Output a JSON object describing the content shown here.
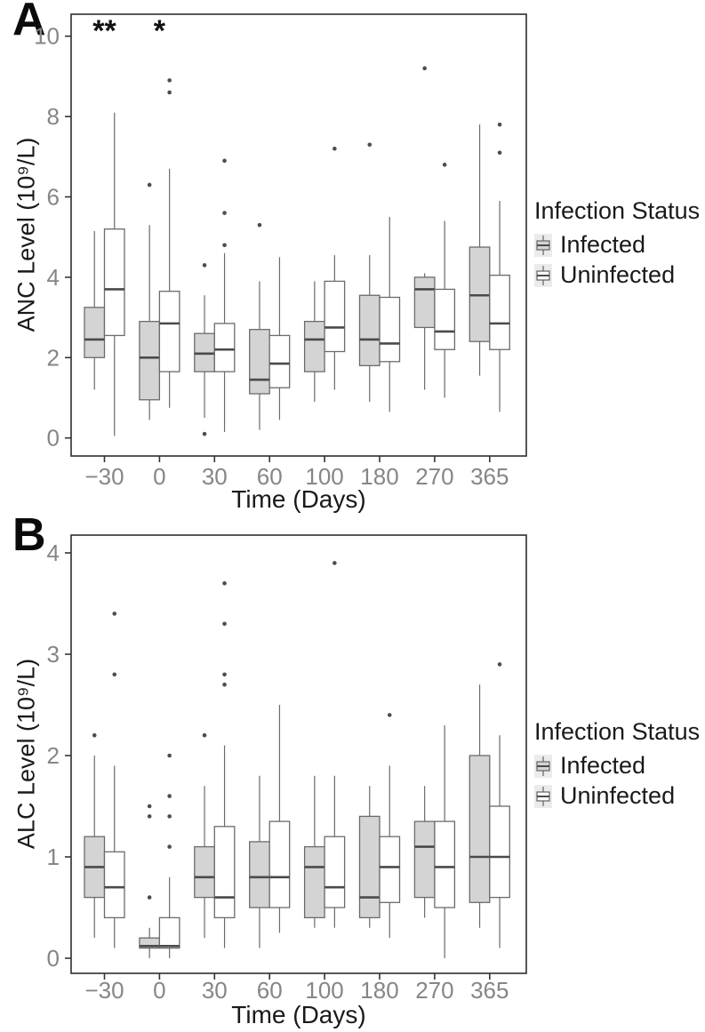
{
  "figure": {
    "background": "#ffffff",
    "colors": {
      "box_stroke": "#6b6b6b",
      "median": "#4a4a4a",
      "outlier": "#4d4d4d",
      "border": "#3a3a3a",
      "tick": "#333333",
      "tick_label": "#868686",
      "axis_title": "#1a1a1a",
      "infected_fill": "#d4d4d4",
      "uninfected_fill": "#ffffff",
      "legend_key_bg": "#ebebeb"
    }
  },
  "chart_data": [
    {
      "type": "box",
      "panel_label": "A",
      "title": "",
      "xlabel": "Time (Days)",
      "ylabel": "ANC Level (10⁹/L)",
      "ylim": [
        0,
        10.5
      ],
      "yticks": [
        0,
        2,
        4,
        6,
        8,
        10
      ],
      "grid": false,
      "legend": {
        "title": "Infection Status",
        "position": "right",
        "entries": [
          "Infected",
          "Uninfected"
        ]
      },
      "categories": [
        "−30",
        "0",
        "30",
        "60",
        "100",
        "180",
        "270",
        "365"
      ],
      "annotations": [
        {
          "text": "**",
          "category": "−30"
        },
        {
          "text": "*",
          "category": "0"
        }
      ],
      "series": [
        {
          "name": "Infected",
          "fill": "#d4d4d4",
          "boxes": [
            {
              "whislo": 1.2,
              "q1": 2.0,
              "med": 2.45,
              "q3": 3.25,
              "whishi": 5.15,
              "outliers": []
            },
            {
              "whislo": 0.45,
              "q1": 0.95,
              "med": 2.0,
              "q3": 2.9,
              "whishi": 5.3,
              "outliers": [
                6.3
              ]
            },
            {
              "whislo": 0.5,
              "q1": 1.65,
              "med": 2.1,
              "q3": 2.6,
              "whishi": 3.55,
              "outliers": [
                4.3,
                0.1
              ]
            },
            {
              "whislo": 0.2,
              "q1": 1.1,
              "med": 1.45,
              "q3": 2.7,
              "whishi": 3.9,
              "outliers": [
                5.3
              ]
            },
            {
              "whislo": 0.9,
              "q1": 1.65,
              "med": 2.45,
              "q3": 2.9,
              "whishi": 3.9,
              "outliers": []
            },
            {
              "whislo": 0.9,
              "q1": 1.8,
              "med": 2.45,
              "q3": 3.55,
              "whishi": 4.55,
              "outliers": [
                7.3
              ]
            },
            {
              "whislo": 1.2,
              "q1": 2.75,
              "med": 3.7,
              "q3": 4.0,
              "whishi": 4.1,
              "outliers": [
                9.2
              ]
            },
            {
              "whislo": 1.55,
              "q1": 2.4,
              "med": 3.55,
              "q3": 4.75,
              "whishi": 7.8,
              "outliers": []
            }
          ]
        },
        {
          "name": "Uninfected",
          "fill": "#ffffff",
          "boxes": [
            {
              "whislo": 0.05,
              "q1": 2.55,
              "med": 3.7,
              "q3": 5.2,
              "whishi": 8.1,
              "outliers": []
            },
            {
              "whislo": 0.75,
              "q1": 1.65,
              "med": 2.85,
              "q3": 3.65,
              "whishi": 6.7,
              "outliers": [
                8.6,
                8.9
              ]
            },
            {
              "whislo": 0.15,
              "q1": 1.65,
              "med": 2.2,
              "q3": 2.85,
              "whishi": 4.6,
              "outliers": [
                4.8,
                5.6,
                6.9
              ]
            },
            {
              "whislo": 0.45,
              "q1": 1.25,
              "med": 1.85,
              "q3": 2.55,
              "whishi": 4.5,
              "outliers": []
            },
            {
              "whislo": 1.2,
              "q1": 2.15,
              "med": 2.75,
              "q3": 3.9,
              "whishi": 4.55,
              "outliers": [
                7.2
              ]
            },
            {
              "whislo": 0.65,
              "q1": 1.9,
              "med": 2.35,
              "q3": 3.5,
              "whishi": 5.5,
              "outliers": []
            },
            {
              "whislo": 1.0,
              "q1": 2.2,
              "med": 2.65,
              "q3": 3.7,
              "whishi": 5.4,
              "outliers": [
                6.8
              ]
            },
            {
              "whislo": 0.65,
              "q1": 2.2,
              "med": 2.85,
              "q3": 4.05,
              "whishi": 5.9,
              "outliers": [
                7.1,
                7.8
              ]
            }
          ]
        }
      ]
    },
    {
      "type": "box",
      "panel_label": "B",
      "title": "",
      "xlabel": "Time (Days)",
      "ylabel": "ALC Level (10⁹/L)",
      "ylim": [
        0,
        4.2
      ],
      "yticks": [
        0,
        1,
        2,
        3,
        4
      ],
      "grid": false,
      "legend": {
        "title": "Infection Status",
        "position": "right",
        "entries": [
          "Infected",
          "Uninfected"
        ]
      },
      "categories": [
        "−30",
        "0",
        "30",
        "60",
        "100",
        "180",
        "270",
        "365"
      ],
      "annotations": [],
      "series": [
        {
          "name": "Infected",
          "fill": "#d4d4d4",
          "boxes": [
            {
              "whislo": 0.2,
              "q1": 0.6,
              "med": 0.9,
              "q3": 1.2,
              "whishi": 2.0,
              "outliers": [
                2.2
              ]
            },
            {
              "whislo": 0.0,
              "q1": 0.1,
              "med": 0.12,
              "q3": 0.2,
              "whishi": 0.3,
              "outliers": [
                0.6,
                1.4,
                1.5
              ]
            },
            {
              "whislo": 0.2,
              "q1": 0.6,
              "med": 0.8,
              "q3": 1.1,
              "whishi": 1.7,
              "outliers": [
                2.2
              ]
            },
            {
              "whislo": 0.1,
              "q1": 0.5,
              "med": 0.8,
              "q3": 1.15,
              "whishi": 1.8,
              "outliers": []
            },
            {
              "whislo": 0.3,
              "q1": 0.4,
              "med": 0.9,
              "q3": 1.1,
              "whishi": 1.8,
              "outliers": []
            },
            {
              "whislo": 0.3,
              "q1": 0.4,
              "med": 0.6,
              "q3": 1.4,
              "whishi": 1.7,
              "outliers": []
            },
            {
              "whislo": 0.4,
              "q1": 0.6,
              "med": 1.1,
              "q3": 1.35,
              "whishi": 1.7,
              "outliers": []
            },
            {
              "whislo": 0.3,
              "q1": 0.55,
              "med": 1.0,
              "q3": 2.0,
              "whishi": 2.7,
              "outliers": []
            }
          ]
        },
        {
          "name": "Uninfected",
          "fill": "#ffffff",
          "boxes": [
            {
              "whislo": 0.1,
              "q1": 0.4,
              "med": 0.7,
              "q3": 1.05,
              "whishi": 1.9,
              "outliers": [
                2.8,
                3.4
              ]
            },
            {
              "whislo": 0.0,
              "q1": 0.1,
              "med": 0.12,
              "q3": 0.4,
              "whishi": 0.8,
              "outliers": [
                1.1,
                1.4,
                1.6,
                2.0
              ]
            },
            {
              "whislo": 0.1,
              "q1": 0.4,
              "med": 0.6,
              "q3": 1.3,
              "whishi": 2.1,
              "outliers": [
                2.7,
                2.8,
                3.3,
                3.7
              ]
            },
            {
              "whislo": 0.25,
              "q1": 0.5,
              "med": 0.8,
              "q3": 1.35,
              "whishi": 2.5,
              "outliers": []
            },
            {
              "whislo": 0.3,
              "q1": 0.5,
              "med": 0.7,
              "q3": 1.2,
              "whishi": 1.8,
              "outliers": [
                3.9
              ]
            },
            {
              "whislo": 0.2,
              "q1": 0.55,
              "med": 0.9,
              "q3": 1.2,
              "whishi": 1.9,
              "outliers": [
                2.4
              ]
            },
            {
              "whislo": 0.0,
              "q1": 0.5,
              "med": 0.9,
              "q3": 1.35,
              "whishi": 2.3,
              "outliers": []
            },
            {
              "whislo": 0.1,
              "q1": 0.6,
              "med": 1.0,
              "q3": 1.5,
              "whishi": 2.2,
              "outliers": [
                2.9
              ]
            }
          ]
        }
      ]
    }
  ]
}
